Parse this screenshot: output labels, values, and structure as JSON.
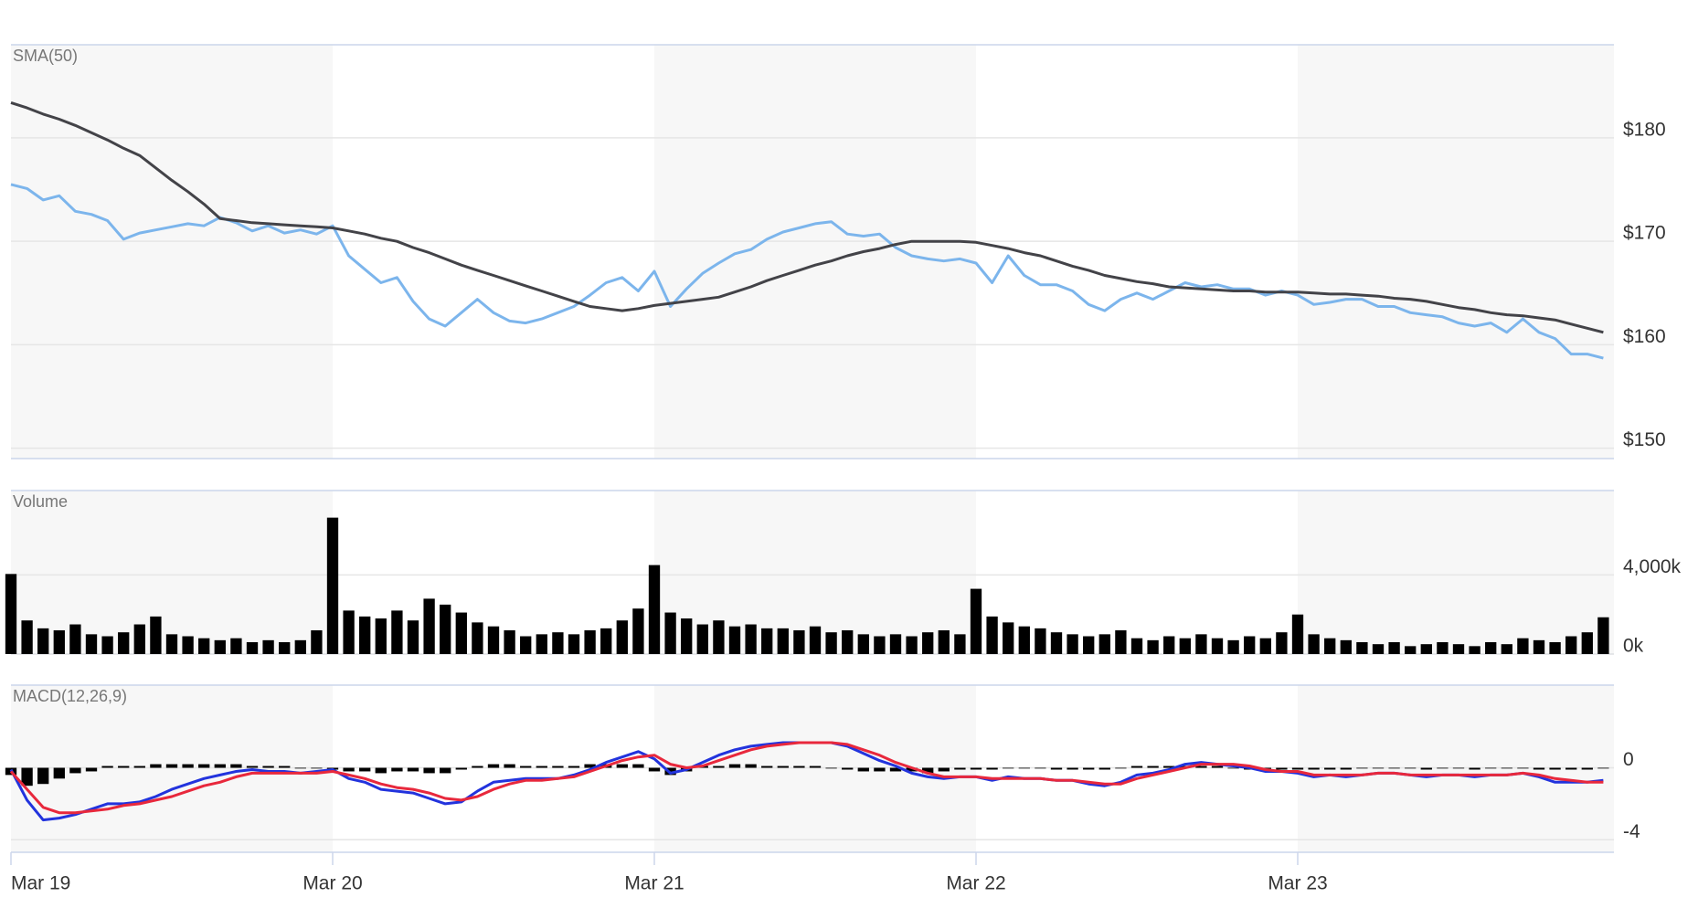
{
  "chart_data": [
    {
      "type": "line",
      "title": "SMA(50)",
      "ylim": [
        149,
        189
      ],
      "yticks": [
        {
          "value": 150,
          "label": "$150"
        },
        {
          "value": 160,
          "label": "$160"
        },
        {
          "value": 170,
          "label": "$170"
        },
        {
          "value": 180,
          "label": "$180"
        }
      ],
      "grid": true,
      "series": [
        {
          "color": "#7cb5ec",
          "values": [
            175.5,
            175.1,
            174.0,
            174.4,
            172.9,
            172.6,
            172.0,
            170.2,
            170.8,
            171.1,
            171.4,
            171.7,
            171.5,
            172.3,
            171.8,
            171.0,
            171.5,
            170.8,
            171.1,
            170.7,
            171.5,
            168.6,
            167.3,
            166.0,
            166.5,
            164.2,
            162.5,
            161.8,
            163.1,
            164.4,
            163.1,
            162.3,
            162.1,
            162.5,
            163.1,
            163.7,
            164.8,
            166.0,
            166.5,
            165.2,
            167.1,
            163.7,
            165.4,
            166.9,
            167.9,
            168.8,
            169.2,
            170.2,
            170.9,
            171.3,
            171.7,
            171.9,
            170.7,
            170.5,
            170.7,
            169.4,
            168.6,
            168.3,
            168.1,
            168.3,
            167.9,
            166.0,
            168.6,
            166.7,
            165.8,
            165.8,
            165.2,
            163.9,
            163.3,
            164.4,
            165.0,
            164.4,
            165.2,
            166.0,
            165.6,
            165.8,
            165.4,
            165.4,
            164.8,
            165.2,
            164.8,
            163.9,
            164.1,
            164.4,
            164.4,
            163.7,
            163.7,
            163.1,
            162.9,
            162.7,
            162.1,
            161.8,
            162.1,
            161.2,
            162.5,
            161.2,
            160.6,
            159.1,
            159.1,
            158.7
          ]
        },
        {
          "color": "#434348",
          "values": [
            183.4,
            182.9,
            182.3,
            181.8,
            181.2,
            180.5,
            179.8,
            179.0,
            178.3,
            177.1,
            175.9,
            174.8,
            173.6,
            172.2,
            172.0,
            171.8,
            171.7,
            171.6,
            171.5,
            171.4,
            171.3,
            171.0,
            170.7,
            170.3,
            170.0,
            169.4,
            168.9,
            168.3,
            167.7,
            167.2,
            166.7,
            166.2,
            165.7,
            165.2,
            164.7,
            164.2,
            163.7,
            163.5,
            163.3,
            163.5,
            163.8,
            164.0,
            164.2,
            164.4,
            164.6,
            165.1,
            165.6,
            166.2,
            166.7,
            167.2,
            167.7,
            168.1,
            168.6,
            169.0,
            169.3,
            169.7,
            170.0,
            170.0,
            170.0,
            170.0,
            169.9,
            169.6,
            169.3,
            168.9,
            168.6,
            168.1,
            167.6,
            167.2,
            166.7,
            166.4,
            166.1,
            165.9,
            165.6,
            165.5,
            165.4,
            165.3,
            165.2,
            165.2,
            165.1,
            165.1,
            165.1,
            165.0,
            164.9,
            164.9,
            164.8,
            164.7,
            164.5,
            164.4,
            164.2,
            163.9,
            163.6,
            163.4,
            163.1,
            162.9,
            162.8,
            162.6,
            162.4,
            162.0,
            161.6,
            161.2
          ]
        }
      ]
    },
    {
      "type": "bar",
      "title": "Volume",
      "ylim": [
        0,
        8270
      ],
      "yticks": [
        {
          "value": 0,
          "label": "0k"
        },
        {
          "value": 4000,
          "label": "4,000k"
        }
      ],
      "grid": true,
      "series": [
        {
          "color": "#000000",
          "values": [
            4050,
            1700,
            1300,
            1200,
            1500,
            1000,
            900,
            1100,
            1500,
            1900,
            1000,
            900,
            800,
            700,
            800,
            600,
            700,
            600,
            700,
            1200,
            6900,
            2200,
            1900,
            1800,
            2200,
            1700,
            2800,
            2500,
            2100,
            1600,
            1400,
            1200,
            900,
            1000,
            1100,
            1000,
            1200,
            1300,
            1700,
            2300,
            4500,
            2100,
            1800,
            1500,
            1700,
            1400,
            1500,
            1300,
            1300,
            1200,
            1400,
            1100,
            1200,
            1000,
            900,
            1000,
            900,
            1100,
            1200,
            1000,
            3300,
            1900,
            1600,
            1400,
            1300,
            1100,
            1000,
            900,
            1000,
            1200,
            800,
            700,
            900,
            800,
            1000,
            800,
            700,
            900,
            800,
            1100,
            2000,
            1000,
            800,
            700,
            600,
            500,
            600,
            400,
            500,
            600,
            500,
            400,
            600,
            500,
            800,
            700,
            600,
            900,
            1100,
            1860
          ]
        }
      ]
    },
    {
      "type": "line",
      "title": "MACD(12,26,9)",
      "ylim": [
        -4.7,
        4.6
      ],
      "yticks": [
        -4,
        0
      ],
      "grid": true,
      "categories": [
        "Mar 19",
        null,
        null,
        null,
        null,
        null,
        null,
        null,
        null,
        null,
        null,
        null,
        null,
        null,
        null,
        null,
        null,
        null,
        null,
        null,
        "Mar 20",
        null,
        null,
        null,
        null,
        null,
        null,
        null,
        null,
        null,
        null,
        null,
        null,
        null,
        null,
        null,
        null,
        null,
        null,
        null,
        "Mar 21",
        null,
        null,
        null,
        null,
        null,
        null,
        null,
        null,
        null,
        null,
        null,
        null,
        null,
        null,
        null,
        null,
        null,
        null,
        null,
        "Mar 22",
        null,
        null,
        null,
        null,
        null,
        null,
        null,
        null,
        null,
        null,
        null,
        null,
        null,
        null,
        null,
        null,
        null,
        null,
        null,
        "Mar 23",
        null,
        null,
        null,
        null,
        null,
        null,
        null,
        null,
        null,
        null,
        null,
        null,
        null,
        null,
        null,
        null,
        null,
        null,
        null
      ],
      "series": [
        {
          "type": "bar",
          "color": "#000000",
          "values": [
            -0.4,
            -1.0,
            -0.9,
            -0.6,
            -0.3,
            -0.2,
            0.1,
            0.1,
            0.1,
            0.2,
            0.2,
            0.2,
            0.2,
            0.2,
            0.2,
            0.1,
            0.1,
            0.1,
            0.0,
            0.0,
            -0.1,
            -0.2,
            -0.2,
            -0.3,
            -0.2,
            -0.2,
            -0.3,
            -0.3,
            -0.1,
            0.1,
            0.2,
            0.2,
            0.1,
            0.1,
            0.1,
            0.1,
            0.2,
            0.2,
            0.2,
            0.2,
            -0.2,
            -0.4,
            -0.2,
            0.1,
            0.1,
            0.2,
            0.2,
            0.1,
            0.1,
            0.1,
            0.1,
            0.0,
            -0.1,
            -0.2,
            -0.2,
            -0.2,
            -0.2,
            -0.3,
            -0.2,
            -0.1,
            -0.1,
            -0.1,
            0.0,
            0.0,
            0.0,
            -0.1,
            -0.1,
            -0.1,
            -0.1,
            0.0,
            0.1,
            0.1,
            0.1,
            0.1,
            0.1,
            0.1,
            0.0,
            -0.1,
            -0.1,
            -0.1,
            -0.1,
            -0.1,
            -0.1,
            -0.1,
            0.0,
            0.0,
            0.0,
            0.0,
            -0.1,
            0.0,
            0.0,
            -0.1,
            0.0,
            0.0,
            0.0,
            -0.1,
            -0.1,
            -0.1,
            -0.1,
            0.0
          ]
        },
        {
          "color": "#2233dd",
          "values": [
            -0.1,
            -1.8,
            -2.9,
            -2.8,
            -2.6,
            -2.3,
            -2.0,
            -2.0,
            -1.9,
            -1.6,
            -1.2,
            -0.9,
            -0.6,
            -0.4,
            -0.2,
            -0.1,
            -0.2,
            -0.2,
            -0.3,
            -0.2,
            -0.1,
            -0.6,
            -0.8,
            -1.2,
            -1.3,
            -1.4,
            -1.7,
            -2.0,
            -1.9,
            -1.3,
            -0.8,
            -0.7,
            -0.6,
            -0.6,
            -0.6,
            -0.4,
            -0.1,
            0.3,
            0.6,
            0.9,
            0.5,
            -0.3,
            -0.1,
            0.3,
            0.7,
            1.0,
            1.2,
            1.3,
            1.4,
            1.4,
            1.4,
            1.4,
            1.2,
            0.8,
            0.4,
            0.1,
            -0.3,
            -0.5,
            -0.6,
            -0.5,
            -0.5,
            -0.7,
            -0.5,
            -0.6,
            -0.6,
            -0.7,
            -0.7,
            -0.9,
            -1.0,
            -0.8,
            -0.4,
            -0.3,
            -0.1,
            0.2,
            0.3,
            0.2,
            0.1,
            0.0,
            -0.2,
            -0.2,
            -0.3,
            -0.5,
            -0.4,
            -0.5,
            -0.4,
            -0.3,
            -0.3,
            -0.4,
            -0.5,
            -0.4,
            -0.4,
            -0.5,
            -0.4,
            -0.4,
            -0.3,
            -0.5,
            -0.8,
            -0.8,
            -0.8,
            -0.7
          ]
        },
        {
          "color": "#e8283c",
          "values": [
            -0.2,
            -1.2,
            -2.2,
            -2.5,
            -2.5,
            -2.4,
            -2.3,
            -2.1,
            -2.0,
            -1.8,
            -1.6,
            -1.3,
            -1.0,
            -0.8,
            -0.5,
            -0.3,
            -0.3,
            -0.3,
            -0.3,
            -0.3,
            -0.2,
            -0.4,
            -0.6,
            -0.9,
            -1.1,
            -1.2,
            -1.4,
            -1.7,
            -1.8,
            -1.6,
            -1.2,
            -0.9,
            -0.7,
            -0.7,
            -0.6,
            -0.5,
            -0.2,
            0.1,
            0.4,
            0.6,
            0.7,
            0.2,
            0.0,
            0.1,
            0.4,
            0.7,
            1.0,
            1.2,
            1.3,
            1.4,
            1.4,
            1.4,
            1.3,
            1.0,
            0.7,
            0.3,
            0.0,
            -0.3,
            -0.5,
            -0.5,
            -0.5,
            -0.6,
            -0.6,
            -0.6,
            -0.6,
            -0.7,
            -0.7,
            -0.8,
            -0.9,
            -0.9,
            -0.6,
            -0.4,
            -0.2,
            0.0,
            0.2,
            0.2,
            0.2,
            0.1,
            -0.1,
            -0.2,
            -0.2,
            -0.4,
            -0.4,
            -0.4,
            -0.4,
            -0.3,
            -0.3,
            -0.4,
            -0.4,
            -0.4,
            -0.4,
            -0.4,
            -0.4,
            -0.4,
            -0.3,
            -0.4,
            -0.6,
            -0.7,
            -0.8,
            -0.8
          ]
        }
      ]
    }
  ]
}
